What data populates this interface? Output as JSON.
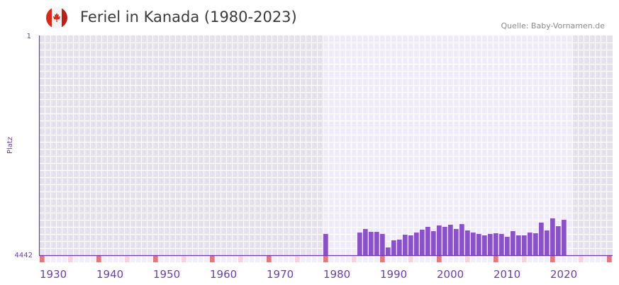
{
  "header": {
    "title": "Feriel in Kanada (1980-2023)",
    "source": "Quelle: Baby-Vornamen.de",
    "flag_icon": "canada-flag-icon"
  },
  "colors": {
    "bar": "#8b52c8",
    "axis": "#6b3fa8",
    "bg_out": "#e4e0ec",
    "bg_in": "#efebf8",
    "marker_decade": "#e8747c",
    "marker_half": "#f5d5dc",
    "strip": "#f3eff9"
  },
  "chart_data": {
    "type": "bar",
    "title": "Feriel in Kanada (1980-2023)",
    "xlabel": "",
    "ylabel": "Platz",
    "ylim": [
      1,
      4442
    ],
    "y_inverted": true,
    "y_ticks": [
      "1",
      "4442"
    ],
    "xlim": [
      1930,
      2030
    ],
    "x_ticks": [
      "1930",
      "1940",
      "1950",
      "1960",
      "1970",
      "1980",
      "1990",
      "2000",
      "2010",
      "2020"
    ],
    "highlight_range": [
      1980,
      2023
    ],
    "grid": true,
    "series": [
      {
        "name": "Feriel",
        "points": [
          [
            1980,
            4012
          ],
          [
            1986,
            3984
          ],
          [
            1987,
            3912
          ],
          [
            1988,
            3970
          ],
          [
            1989,
            3970
          ],
          [
            1990,
            4012
          ],
          [
            1991,
            4285
          ],
          [
            1992,
            4141
          ],
          [
            1993,
            4127
          ],
          [
            1994,
            4027
          ],
          [
            1995,
            4041
          ],
          [
            1996,
            3984
          ],
          [
            1997,
            3926
          ],
          [
            1998,
            3869
          ],
          [
            1999,
            3955
          ],
          [
            2000,
            3840
          ],
          [
            2001,
            3869
          ],
          [
            2002,
            3826
          ],
          [
            2003,
            3912
          ],
          [
            2004,
            3812
          ],
          [
            2005,
            3941
          ],
          [
            2006,
            3984
          ],
          [
            2007,
            4012
          ],
          [
            2008,
            4041
          ],
          [
            2009,
            4012
          ],
          [
            2010,
            3998
          ],
          [
            2011,
            4012
          ],
          [
            2012,
            4070
          ],
          [
            2013,
            3955
          ],
          [
            2014,
            4041
          ],
          [
            2015,
            4041
          ],
          [
            2016,
            3984
          ],
          [
            2017,
            3998
          ],
          [
            2018,
            3783
          ],
          [
            2019,
            3941
          ],
          [
            2020,
            3697
          ],
          [
            2021,
            3855
          ],
          [
            2022,
            3726
          ]
        ]
      }
    ]
  }
}
